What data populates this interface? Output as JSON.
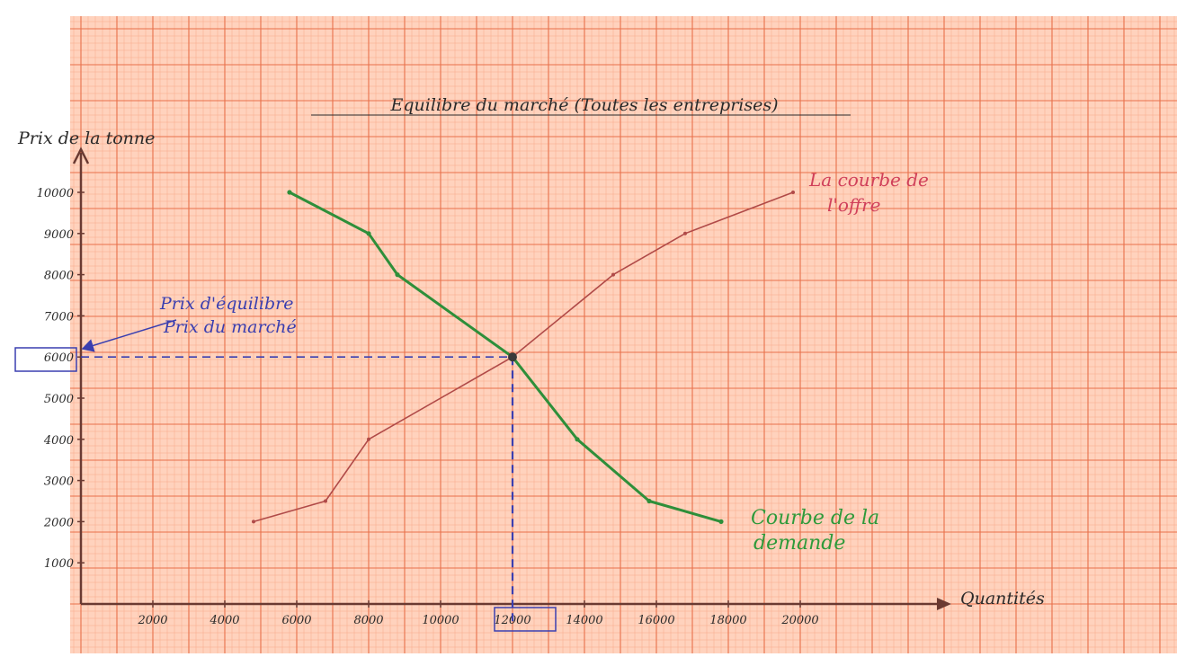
{
  "colors": {
    "paper": "#ffd2bd",
    "grid_minor": "#f7a98b",
    "grid_major": "#e8704a",
    "axis": "#6a3a32",
    "supply": "#b04a48",
    "demand": "#2e8f3a",
    "annotation_blue": "#3a3fb0",
    "annotation_green": "#2e9a3a",
    "annotation_red": "#d0405a"
  },
  "chart_data": {
    "type": "line",
    "title": "Equilibre du marché (Toutes les entreprises)",
    "ylabel": "Prix de la tonne",
    "xlabel": "Quantités",
    "xlim": [
      0,
      22000
    ],
    "ylim": [
      0,
      11000
    ],
    "x_ticks": [
      "2000",
      "4000",
      "6000",
      "8000",
      "10000",
      "12000",
      "14000",
      "16000",
      "18000",
      "20000"
    ],
    "y_ticks": [
      "1000",
      "2000",
      "3000",
      "4000",
      "5000",
      "6000",
      "7000",
      "8000",
      "9000",
      "10000"
    ],
    "grid": true,
    "series": [
      {
        "name": "La courbe de l'offre",
        "color": "#b04a48",
        "points": [
          [
            4800,
            2000
          ],
          [
            6800,
            2500
          ],
          [
            8000,
            4000
          ],
          [
            12000,
            6000
          ],
          [
            14800,
            8000
          ],
          [
            16800,
            9000
          ],
          [
            19800,
            10000
          ]
        ]
      },
      {
        "name": "Courbe de la demande",
        "color": "#2e8f3a",
        "points": [
          [
            5800,
            10000
          ],
          [
            8000,
            9000
          ],
          [
            8800,
            8000
          ],
          [
            12000,
            6000
          ],
          [
            13800,
            4000
          ],
          [
            15800,
            2500
          ],
          [
            17800,
            2000
          ]
        ]
      }
    ],
    "equilibrium": {
      "x": 12000,
      "y": 6000,
      "x_label": "12000",
      "y_label": "6000"
    },
    "annotations": {
      "equilibrium_line1": "Prix d'équilibre",
      "equilibrium_line2": "Prix du marché",
      "supply_line1": "La courbe de",
      "supply_line2": "l'offre",
      "demand_line1": "Courbe de la",
      "demand_line2": "demande"
    }
  }
}
